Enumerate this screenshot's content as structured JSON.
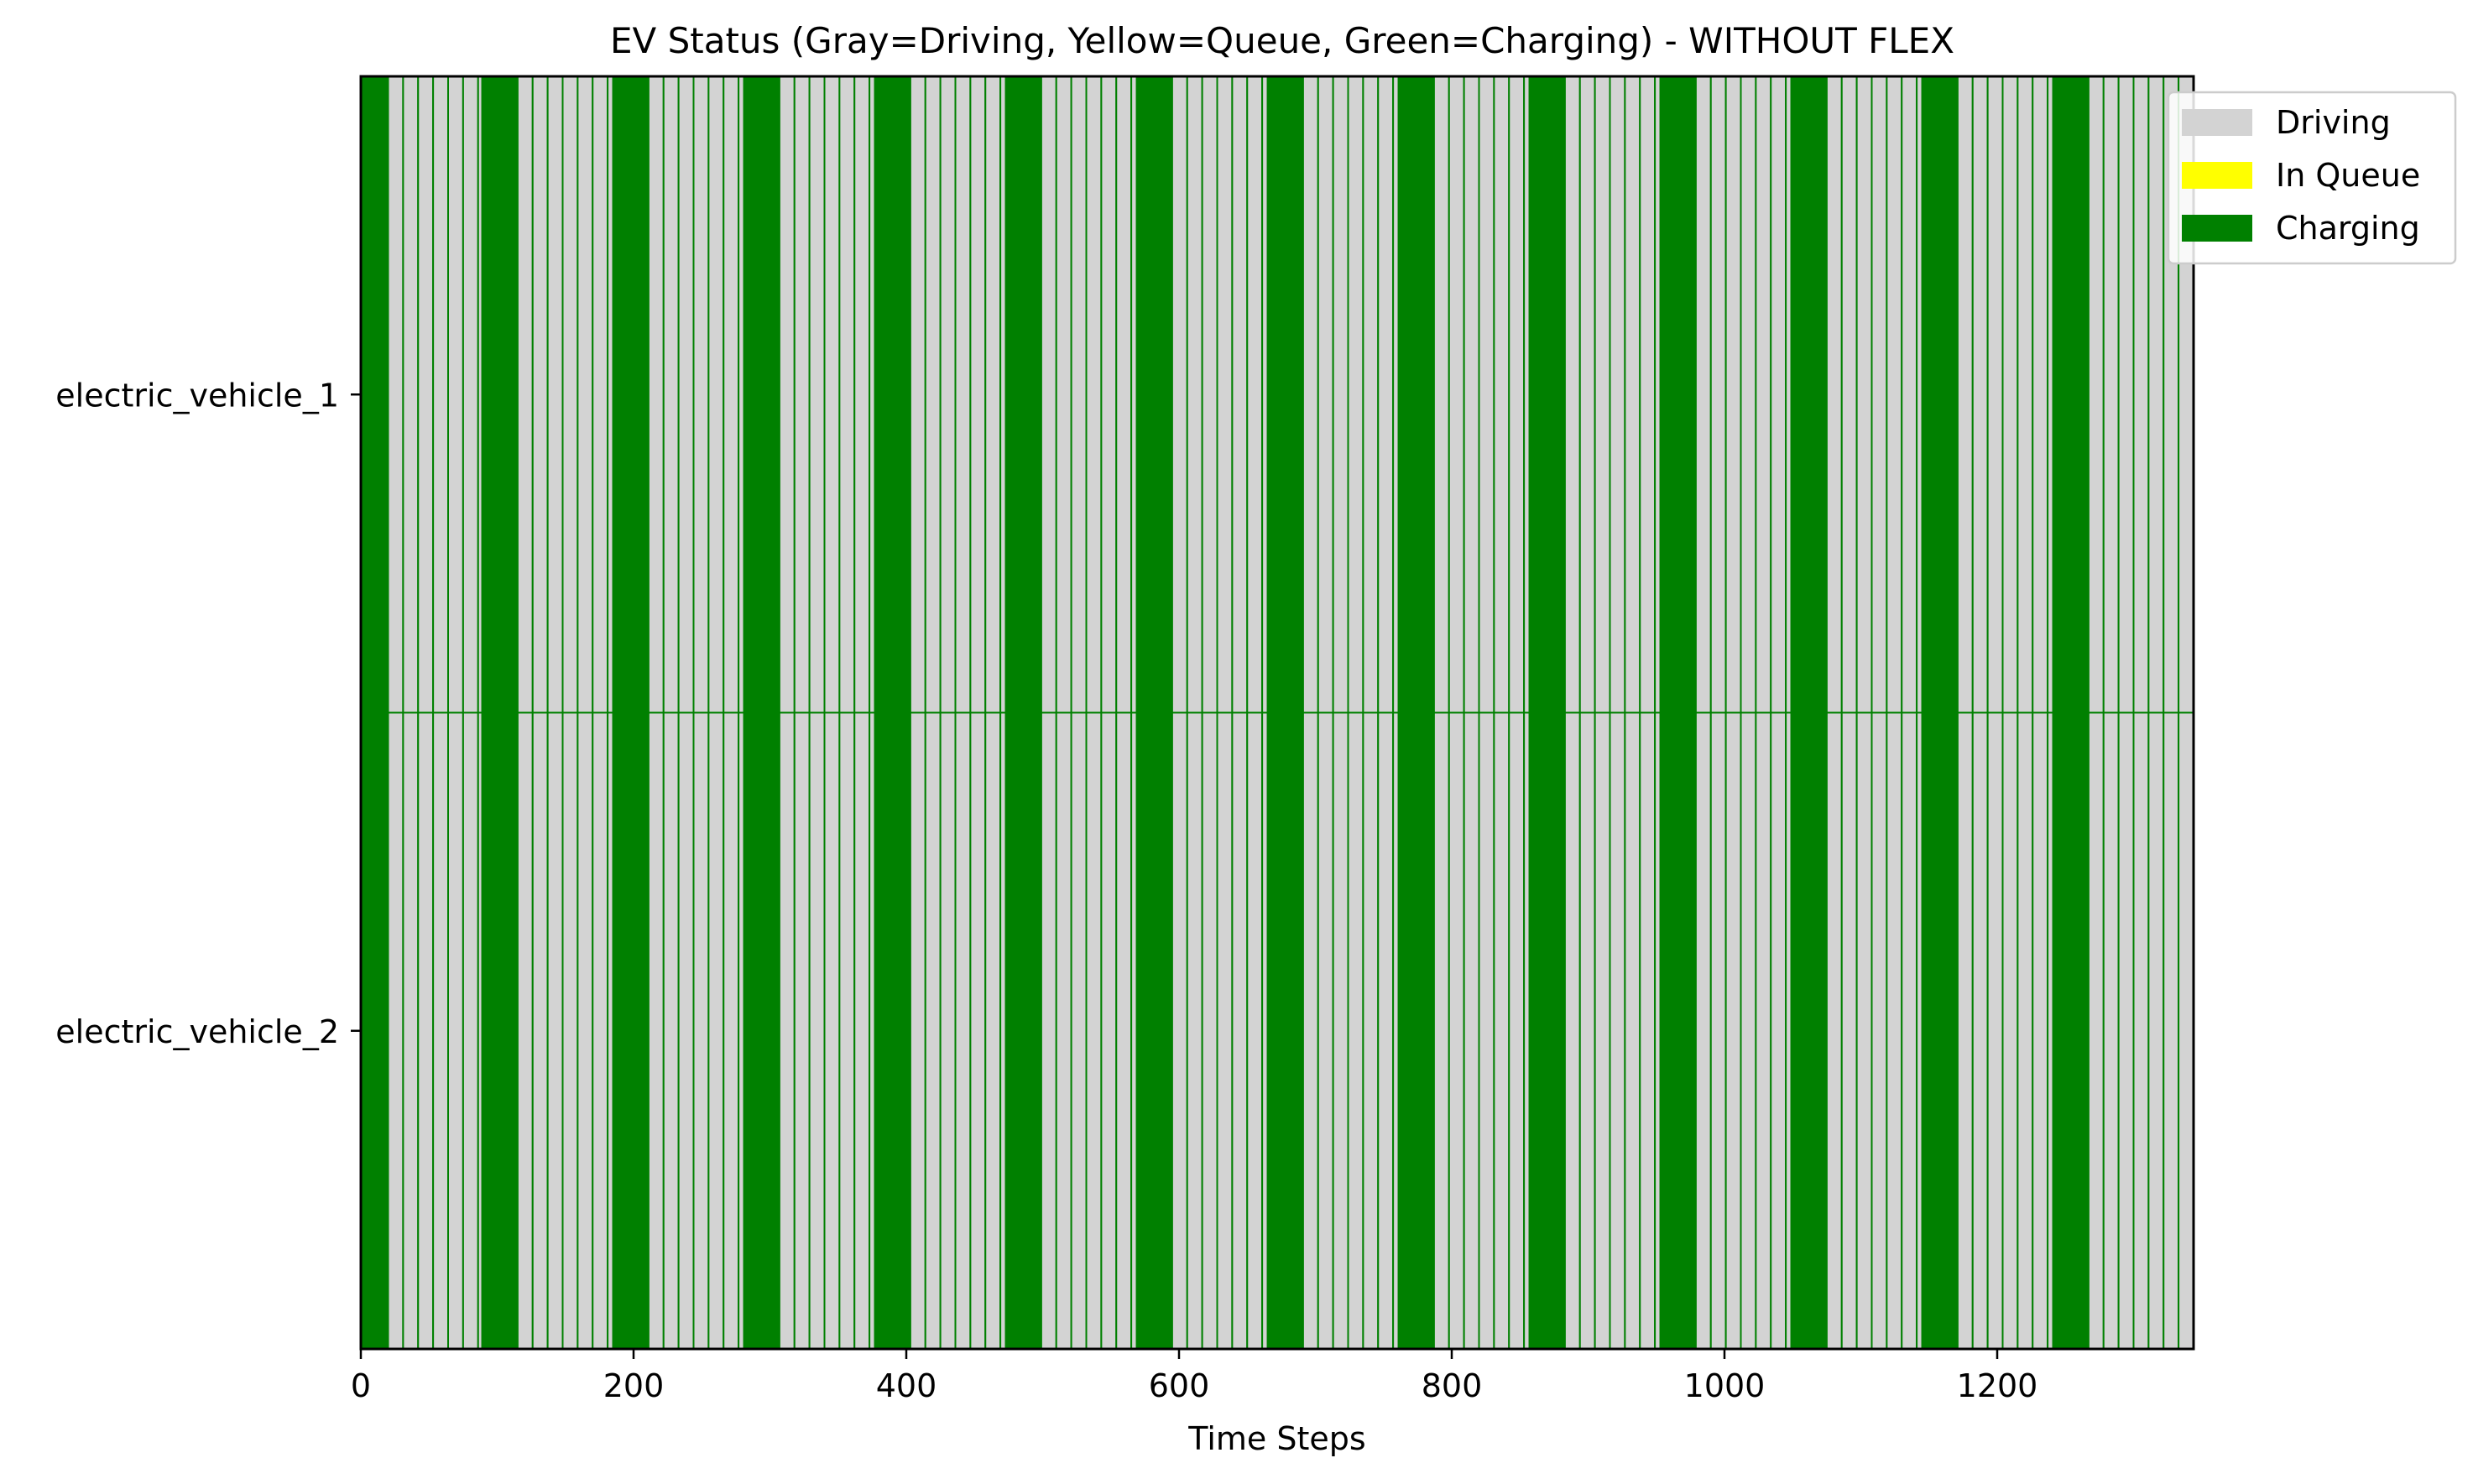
{
  "chart_data": {
    "type": "bar",
    "title": "EV Status (Gray=Driving, Yellow=Queue, Green=Charging) - WITHOUT FLEX",
    "xlabel": "Time Steps",
    "ylabel": "",
    "xlim": [
      0,
      1344
    ],
    "xticks": [
      0,
      200,
      400,
      600,
      800,
      1000,
      1200
    ],
    "categories": [
      "electric_vehicle_1",
      "electric_vehicle_2"
    ],
    "legend": {
      "placement": "top-right",
      "entries": [
        {
          "label": "Driving",
          "color": "#d3d3d3"
        },
        {
          "label": "In Queue",
          "color": "#ffff00"
        },
        {
          "label": "Charging",
          "color": "#008000"
        }
      ]
    },
    "grid": false,
    "colors": {
      "driving": "#d3d3d3",
      "queue": "#ffff00",
      "charging": "#008000"
    },
    "charging_intervals": [
      [
        0,
        20
      ],
      [
        89,
        115
      ],
      [
        185,
        211
      ],
      [
        281,
        307
      ],
      [
        377,
        403
      ],
      [
        473,
        499
      ],
      [
        569,
        595
      ],
      [
        665,
        691
      ],
      [
        761,
        787
      ],
      [
        857,
        883
      ],
      [
        953,
        979
      ],
      [
        1049,
        1075
      ],
      [
        1145,
        1171
      ],
      [
        1241,
        1267
      ]
    ],
    "driving_step_width": 11
  }
}
